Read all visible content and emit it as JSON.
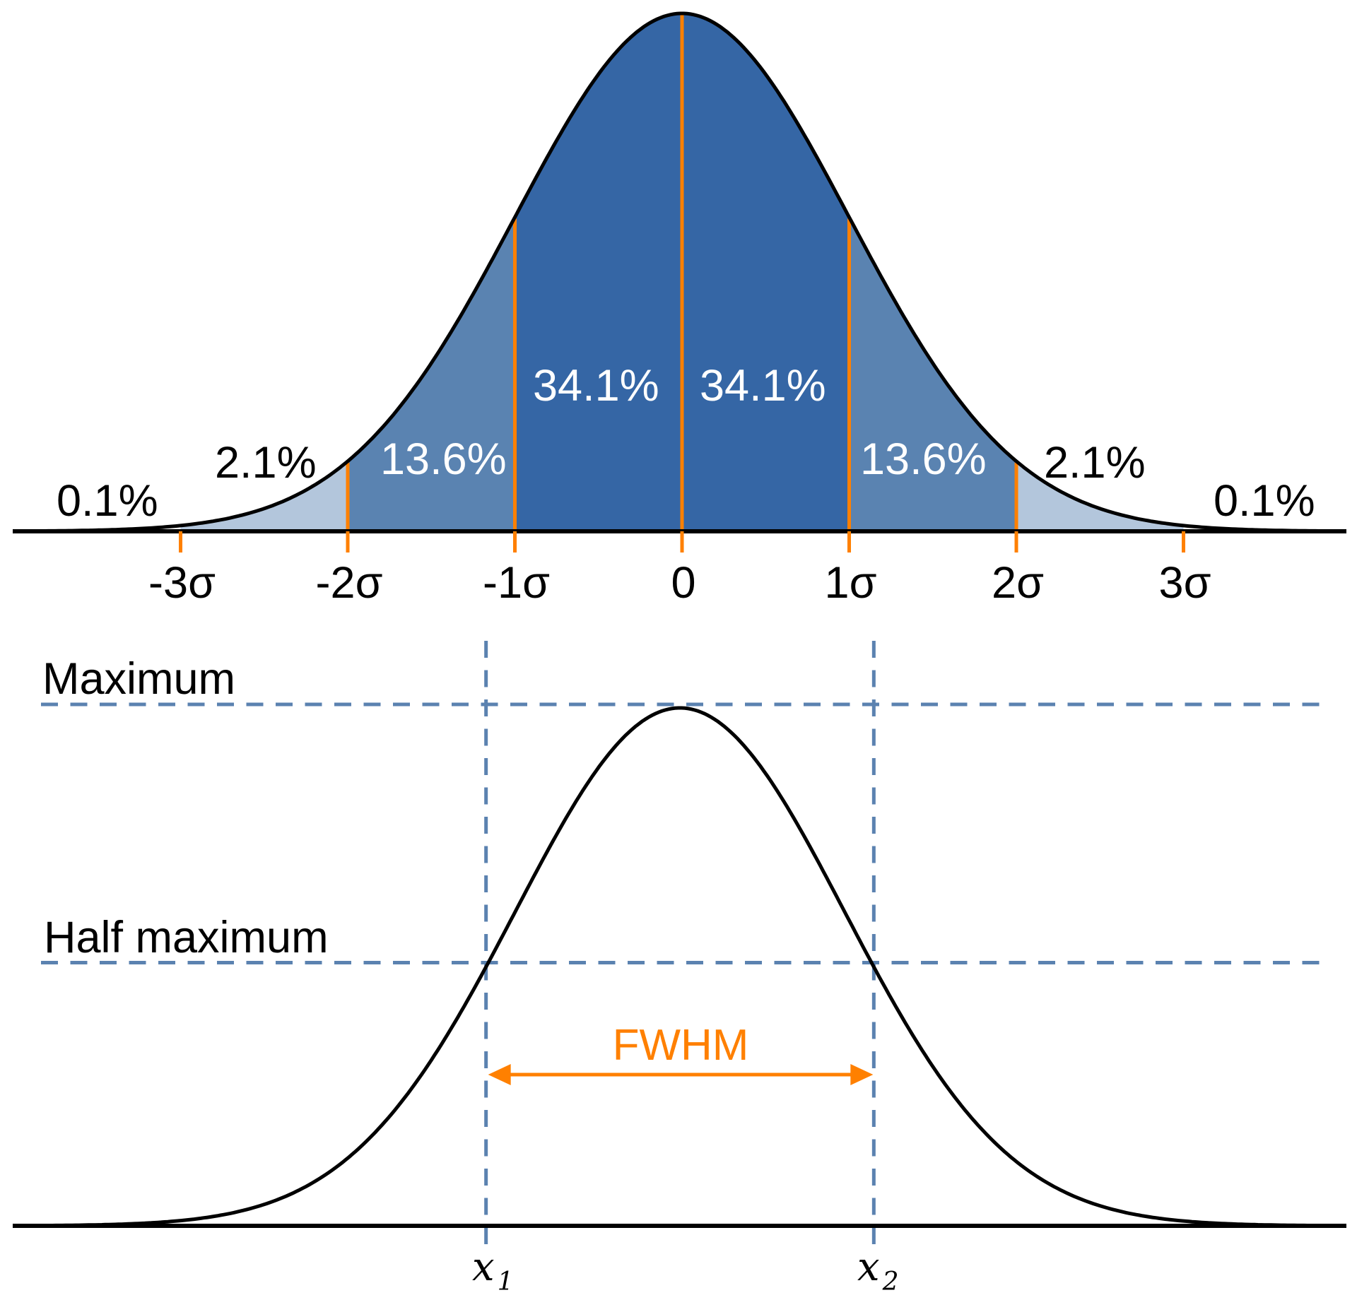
{
  "chart_data": [
    {
      "type": "area",
      "title": "",
      "description_of_content": "standard normal distribution split by standard deviations",
      "x_range_sigma": [
        -4,
        4
      ],
      "ticks": [
        {
          "value": -3,
          "label": "-3σ"
        },
        {
          "value": -2,
          "label": "-2σ"
        },
        {
          "value": -1,
          "label": "-1σ"
        },
        {
          "value": 0,
          "label": "0"
        },
        {
          "value": 1,
          "label": "1σ"
        },
        {
          "value": 2,
          "label": "2σ"
        },
        {
          "value": 3,
          "label": "3σ"
        }
      ],
      "regions": [
        {
          "from": -4,
          "to": -3,
          "percent": 0.1,
          "label": "0.1%",
          "fill": "none"
        },
        {
          "from": -3,
          "to": -2,
          "percent": 2.1,
          "label": "2.1%",
          "fill": "#b3c6dc"
        },
        {
          "from": -2,
          "to": -1,
          "percent": 13.6,
          "label": "13.6%",
          "fill": "#5a83b1"
        },
        {
          "from": -1,
          "to": 0,
          "percent": 34.1,
          "label": "34.1%",
          "fill": "#3566a5"
        },
        {
          "from": 0,
          "to": 1,
          "percent": 34.1,
          "label": "34.1%",
          "fill": "#3566a5"
        },
        {
          "from": 1,
          "to": 2,
          "percent": 13.6,
          "label": "13.6%",
          "fill": "#5a83b1"
        },
        {
          "from": 2,
          "to": 3,
          "percent": 2.1,
          "label": "2.1%",
          "fill": "#b3c6dc"
        },
        {
          "from": 3,
          "to": 4,
          "percent": 0.1,
          "label": "0.1%",
          "fill": "none"
        }
      ]
    },
    {
      "type": "line",
      "title": "",
      "description_of_content": "Gaussian curve with full width at half maximum",
      "levels": [
        {
          "value": 1.0,
          "label": "Maximum"
        },
        {
          "value": 0.5,
          "label": "Half maximum"
        }
      ],
      "fwhm_label": "FWHM",
      "x_markers": [
        {
          "name": "x",
          "subscript": "1",
          "position_sigma": -1.1774
        },
        {
          "name": "x",
          "subscript": "2",
          "position_sigma": 1.1774
        }
      ]
    }
  ],
  "colors": {
    "curve": "#000000",
    "divider": "#ff8000",
    "dashed": "#5b82b0",
    "fwhm": "#ff8000"
  }
}
